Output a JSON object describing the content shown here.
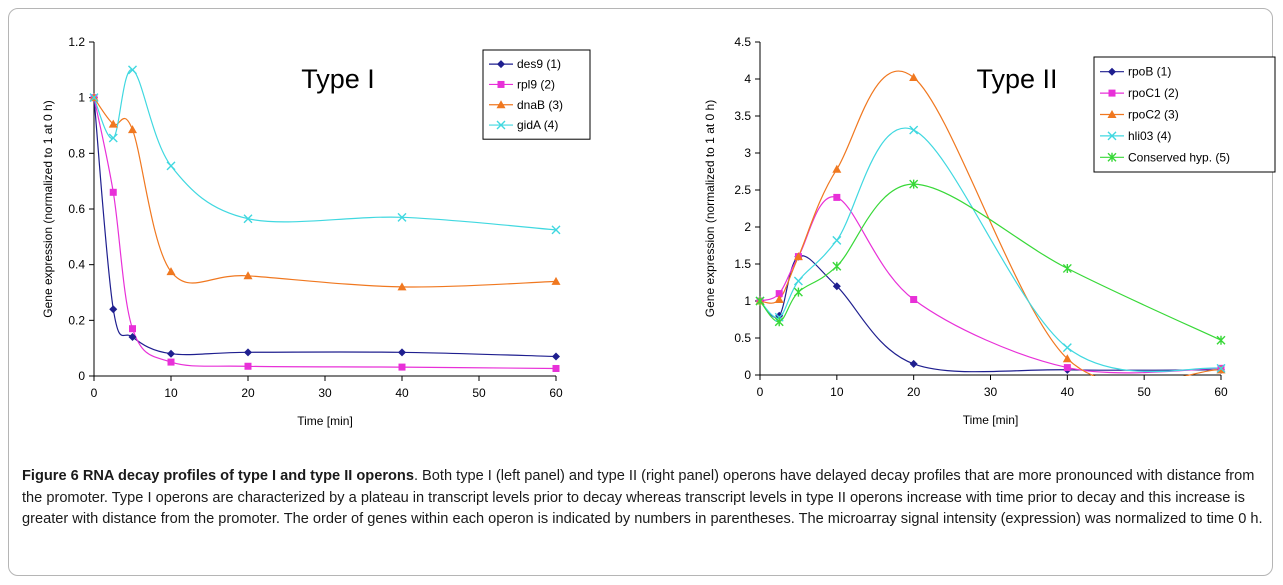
{
  "caption": {
    "label": "Figure 6",
    "title": "RNA decay profiles of type I and type II operons",
    "text": ". Both type I (left panel) and type II (right panel) operons have delayed decay profiles that are more pronounced with distance from the promoter. Type I operons are characterized by a plateau in transcript levels prior to decay whereas transcript levels in type II operons increase with time prior to decay and this increase is greater with distance from the promoter. The order of genes within each operon is indicated by numbers in parentheses. The microarray signal intensity (expression) was normalized to time 0 h."
  },
  "chart_data": [
    {
      "type": "line",
      "title": "Type I",
      "xlabel": "Time [min]",
      "ylabel": "Gene expression (normalized to 1 at 0 h)",
      "xlim": [
        0,
        60
      ],
      "ylim": [
        0,
        1.2
      ],
      "xticks": [
        0,
        10,
        20,
        30,
        40,
        50,
        60
      ],
      "yticks": [
        0,
        0.2,
        0.4,
        0.6,
        0.8,
        1,
        1.2
      ],
      "ytick_labels": [
        "0",
        "0.2",
        "0.4",
        "0.6",
        "0.8",
        "1",
        "1.2"
      ],
      "legend_position": "top-right",
      "grid": false,
      "x": [
        0,
        2.5,
        5,
        10,
        20,
        40,
        60
      ],
      "series": [
        {
          "name": "des9 (1)",
          "color": "#1f1f8f",
          "marker": "diamond",
          "values": [
            1,
            0.24,
            0.14,
            0.08,
            0.085,
            0.085,
            0.07
          ]
        },
        {
          "name": "rpl9 (2)",
          "color": "#e830d8",
          "marker": "square",
          "values": [
            1,
            0.66,
            0.17,
            0.05,
            0.035,
            0.032,
            0.027
          ]
        },
        {
          "name": "dnaB (3)",
          "color": "#f07820",
          "marker": "triangle",
          "values": [
            1,
            0.905,
            0.885,
            0.375,
            0.36,
            0.32,
            0.34
          ]
        },
        {
          "name": "gidA (4)",
          "color": "#40d8e0",
          "marker": "x",
          "values": [
            1,
            0.855,
            1.1,
            0.755,
            0.565,
            0.57,
            0.525
          ]
        }
      ]
    },
    {
      "type": "line",
      "title": "Type II",
      "xlabel": "Time [min]",
      "ylabel": "Gene expression (normalized to 1 at 0 h)",
      "xlim": [
        0,
        60
      ],
      "ylim": [
        0,
        4.5
      ],
      "xticks": [
        0,
        10,
        20,
        30,
        40,
        50,
        60
      ],
      "yticks": [
        0,
        0.5,
        1,
        1.5,
        2,
        2.5,
        3,
        3.5,
        4,
        4.5
      ],
      "ytick_labels": [
        "0",
        "0.5",
        "1",
        "1.5",
        "2",
        "2.5",
        "3",
        "3.5",
        "4",
        "4.5"
      ],
      "legend_position": "top-right",
      "grid": false,
      "x": [
        0,
        2.5,
        5,
        10,
        20,
        40,
        60
      ],
      "series": [
        {
          "name": "rpoB (1)",
          "color": "#1f1f8f",
          "marker": "diamond",
          "values": [
            1,
            0.8,
            1.6,
            1.2,
            0.15,
            0.07,
            0.07
          ]
        },
        {
          "name": "rpoC1 (2)",
          "color": "#e830d8",
          "marker": "square",
          "values": [
            1,
            1.1,
            1.6,
            2.4,
            1.02,
            0.1,
            0.09
          ]
        },
        {
          "name": "rpoC2 (3)",
          "color": "#f07820",
          "marker": "triangle",
          "values": [
            1,
            1.02,
            1.6,
            2.78,
            4.02,
            0.22,
            0.07
          ]
        },
        {
          "name": "hli03 (4)",
          "color": "#40d8e0",
          "marker": "x",
          "values": [
            1,
            0.78,
            1.27,
            1.82,
            3.31,
            0.37,
            0.09
          ]
        },
        {
          "name": "Conserved hyp. (5)",
          "color": "#38d838",
          "marker": "star",
          "values": [
            1,
            0.72,
            1.12,
            1.47,
            2.58,
            1.44,
            0.47
          ]
        }
      ]
    }
  ]
}
